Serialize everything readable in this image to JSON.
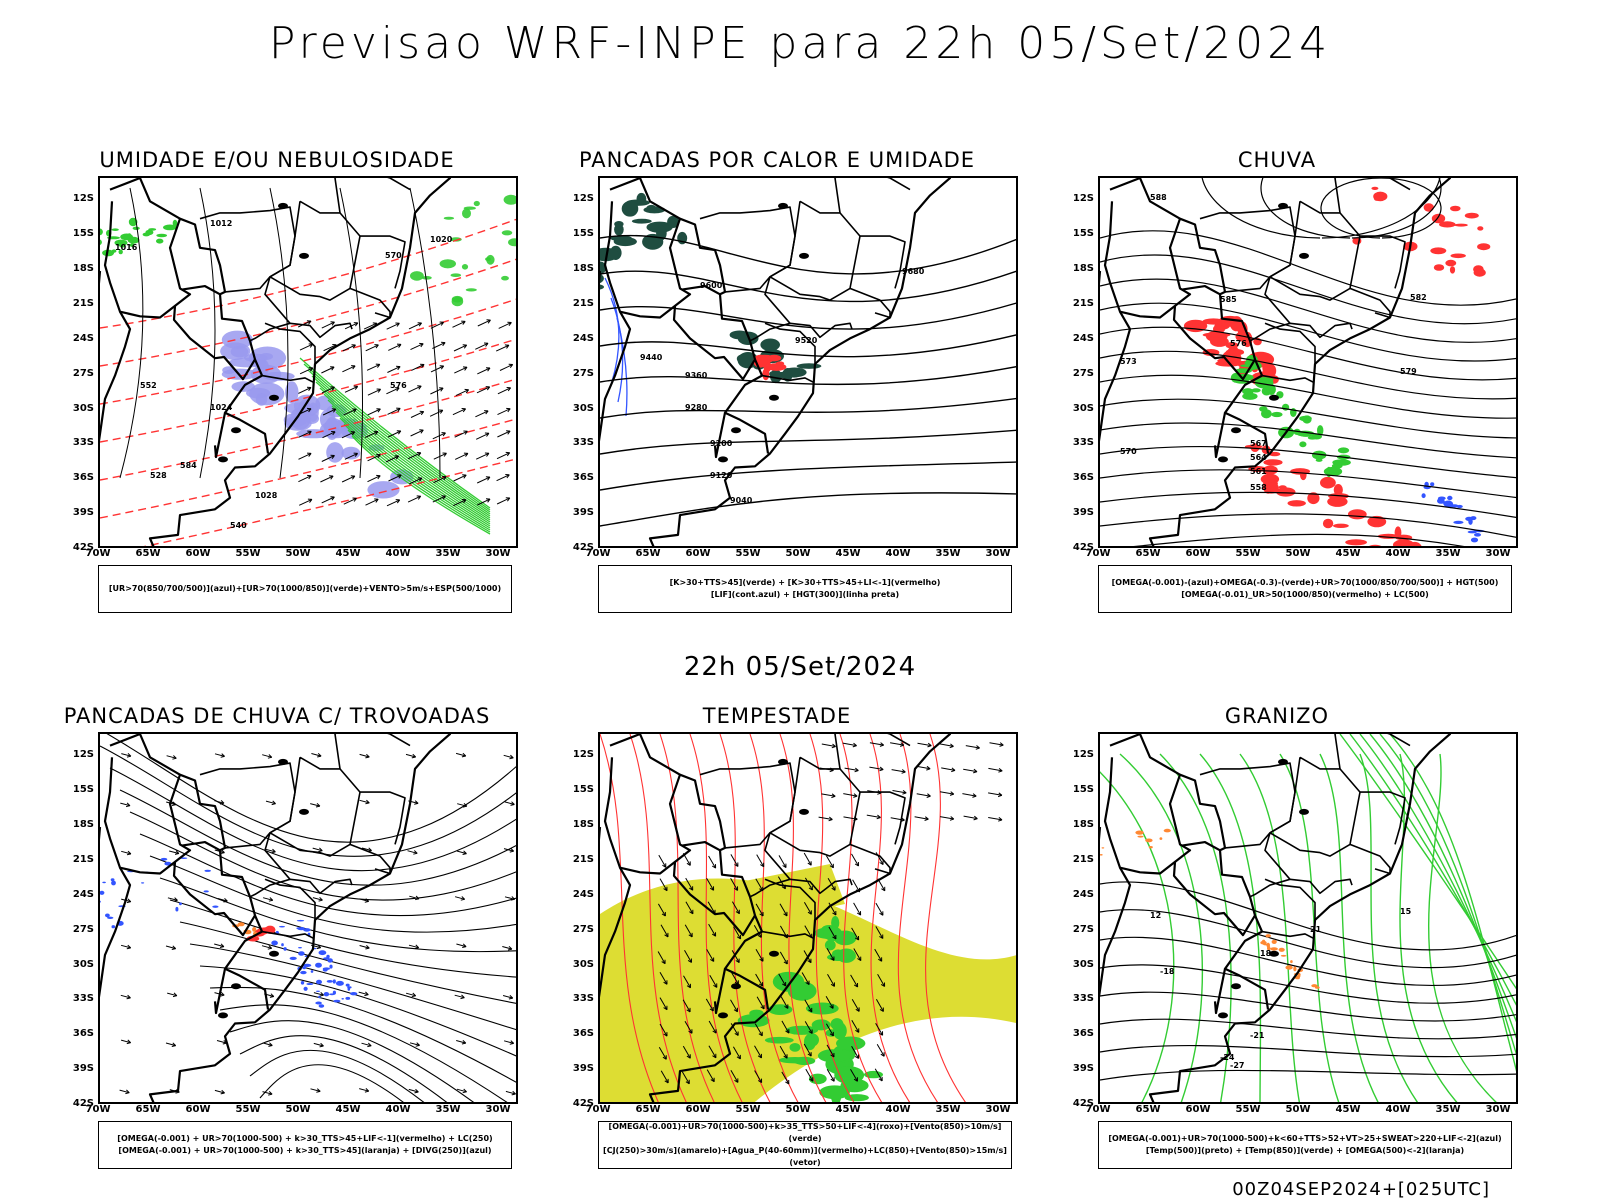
{
  "header": {
    "title": "Previsao WRF-INPE  para 22h 05/Set/2024"
  },
  "mid_title": "22h 05/Set/2024",
  "footer": "00Z04SEP2024+[025UTC]",
  "axes": {
    "lat_labels": [
      "12S",
      "15S",
      "18S",
      "21S",
      "24S",
      "27S",
      "30S",
      "33S",
      "36S",
      "39S",
      "42S"
    ],
    "lon_labels": [
      "70W",
      "65W",
      "60W",
      "55W",
      "50W",
      "45W",
      "40W",
      "35W",
      "30W"
    ]
  },
  "colors": {
    "green": "#33cc33",
    "red": "#ff3333",
    "blue": "#3355ff",
    "lavender": "#9999ee",
    "darkgreen": "#1f4d40",
    "yellow": "#dddd33",
    "orange": "#ff8833",
    "black": "#000000"
  },
  "panels": [
    {
      "title": "UMIDADE E/OU NEBULOSIDADE",
      "legend": [
        "[UR>70(850/700/500)](azul)+[UR>70(1000/850)](verde)+VENTO>5m/s+ESP(500/1000)"
      ],
      "contour_labels": [
        "1012",
        "1016",
        "1020",
        "1024",
        "1028",
        "552",
        "570",
        "576",
        "584",
        "540",
        "528"
      ]
    },
    {
      "title": "PANCADAS POR CALOR E UMIDADE",
      "legend": [
        "[K>30+TTS>45](verde) + [K>30+TTS>45+LI<-1](vermelho)",
        "[LIF](cont.azul) + [HGT(300)](linha preta)"
      ],
      "contour_labels": [
        "9680",
        "9600",
        "9520",
        "9440",
        "9360",
        "9280",
        "9200",
        "9120",
        "9040"
      ]
    },
    {
      "title": "CHUVA",
      "legend": [
        "[OMEGA(-0.001)-(azul)+OMEGA(-0.3)-(verde)+UR>70(1000/850/700/500)] + HGT(500)",
        "[OMEGA(-0.01)_UR>50(1000/850)(vermelho) + LC(500)"
      ],
      "contour_labels": [
        "588",
        "585",
        "582",
        "579",
        "576",
        "573",
        "570",
        "567",
        "564",
        "561",
        "558"
      ]
    },
    {
      "title": "PANCADAS DE CHUVA C/ TROVOADAS",
      "legend": [
        "[OMEGA(-0.001) + UR>70(1000-500) + k>30_TTS>45+LIF<-1](vermelho) + LC(250)",
        "[OMEGA(-0.001) + UR>70(1000-500) + k>30_TTS>45](laranja) + [DIVG(250)](azul)"
      ],
      "contour_labels": []
    },
    {
      "title": "TEMPESTADE",
      "legend": [
        "[OMEGA(-0.001)+UR>70(1000-500)+k>35_TTS>50+LIF<-4](roxo)+[Vento(850)>10m/s](verde)",
        "[CJ(250)>30m/s](amarelo)+[Agua_P(40-60mm)](vermelho)+LC(850)+[Vento(850)>15m/s](vetor)"
      ],
      "contour_labels": []
    },
    {
      "title": "GRANIZO",
      "legend": [
        "[OMEGA(-0.001)+UR>70(1000-500)+k<60+TTS>52+VT>25+SWEAT>220+LIF<-2](azul)",
        "[Temp(500)](preto) + [Temp(850)](verde) + [OMEGA(500)<-2](laranja)"
      ],
      "contour_labels": [
        "-18",
        "-21",
        "-24",
        "-27",
        "12",
        "15",
        "18",
        "21"
      ]
    }
  ],
  "chart_data": [
    {
      "type": "map",
      "title": "UMIDADE E/OU NEBULOSIDADE",
      "xlabel": "longitude",
      "ylabel": "latitude",
      "xlim": [
        -70,
        -28
      ],
      "ylim": [
        -42,
        -10
      ],
      "fields": [
        "UR>70 850/700/500 (azul)",
        "UR>70 1000/850 (verde)",
        "vento > 5 m/s",
        "espessura 500/1000"
      ],
      "isobar_values": [
        1012,
        1016,
        1020,
        1024,
        1028
      ],
      "thickness_values": [
        528,
        540,
        552,
        570,
        576,
        584
      ]
    },
    {
      "type": "map",
      "title": "PANCADAS POR CALOR E UMIDADE",
      "xlabel": "longitude",
      "ylabel": "latitude",
      "xlim": [
        -70,
        -28
      ],
      "ylim": [
        -42,
        -10
      ],
      "fields": [
        "K>30+TTS>45 (verde)",
        "K>30+TTS>45+LI<-1 (vermelho)",
        "LIF (azul)",
        "HGT 300 (preto)"
      ],
      "hgt300_values": [
        9040,
        9120,
        9200,
        9280,
        9360,
        9440,
        9520,
        9600,
        9680
      ]
    },
    {
      "type": "map",
      "title": "CHUVA",
      "xlabel": "longitude",
      "ylabel": "latitude",
      "xlim": [
        -70,
        -28
      ],
      "ylim": [
        -42,
        -10
      ],
      "fields": [
        "OMEGA -0.001 (azul)",
        "OMEGA -0.3 (verde)",
        "OMEGA -0.01 UR>50 (vermelho)",
        "HGT 500"
      ],
      "hgt500_values": [
        558,
        561,
        564,
        567,
        570,
        573,
        576,
        579,
        582,
        585,
        588
      ]
    },
    {
      "type": "map",
      "title": "PANCADAS DE CHUVA C/ TROVOADAS",
      "xlabel": "longitude",
      "ylabel": "latitude",
      "xlim": [
        -70,
        -28
      ],
      "ylim": [
        -42,
        -10
      ],
      "fields": [
        "vermelho",
        "laranja",
        "DIVG 250 (azul)",
        "LC 250"
      ]
    },
    {
      "type": "map",
      "title": "TEMPESTADE",
      "xlabel": "longitude",
      "ylabel": "latitude",
      "xlim": [
        -70,
        -28
      ],
      "ylim": [
        -42,
        -10
      ],
      "fields": [
        "CJ 250 > 30 m/s (amarelo)",
        "Vento 850 > 10 m/s (verde)",
        "LC 850 (vermelho)",
        "Vento 850 > 15 m/s (vetor)"
      ]
    },
    {
      "type": "map",
      "title": "GRANIZO",
      "xlabel": "longitude",
      "ylabel": "latitude",
      "xlim": [
        -70,
        -28
      ],
      "ylim": [
        -42,
        -10
      ],
      "fields": [
        "Temp 500 (preto)",
        "Temp 850 (verde)",
        "OMEGA 500 < -2 (laranja)"
      ],
      "temp500_values": [
        -27,
        -24,
        -21,
        -18
      ],
      "temp850_values": [
        12,
        15,
        18,
        21
      ]
    }
  ]
}
